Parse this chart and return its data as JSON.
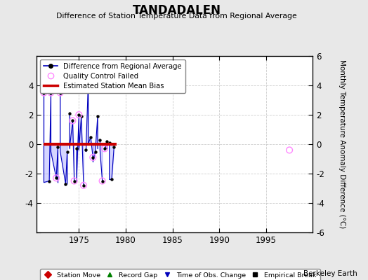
{
  "title": "TANDADALEN",
  "subtitle": "Difference of Station Temperature Data from Regional Average",
  "ylabel": "Monthly Temperature Anomaly Difference (°C)",
  "xlim": [
    1970.5,
    2000
  ],
  "ylim": [
    -6,
    6
  ],
  "xticks": [
    1975,
    1980,
    1985,
    1990,
    1995
  ],
  "yticks": [
    -6,
    -4,
    -2,
    0,
    2,
    4,
    6
  ],
  "background_color": "#e8e8e8",
  "plot_bg_color": "#ffffff",
  "credit": "Berkeley Earth",
  "main_line_color": "#0000bb",
  "main_fill_color": "#8888ff",
  "qc_color": "#ff88ff",
  "bias_color": "#cc0000",
  "bias_x_start": 1971.2,
  "bias_x_end": 1979.0,
  "bias_y": 0.0,
  "lone_point_x": 1997.5,
  "lone_point_y": -0.4,
  "series": [
    {
      "x": [
        1971.25,
        1971.25,
        1971.83,
        1972.0,
        1972.0,
        1972.58,
        1972.75,
        1972.75
      ],
      "y": [
        3.5,
        -2.6,
        -2.5,
        3.5,
        -0.5,
        -2.3,
        -0.2,
        -2.6
      ]
    },
    {
      "x": [
        1973.0,
        1973.0,
        1973.58,
        1973.75,
        1973.75
      ],
      "y": [
        3.5,
        -0.5,
        -2.7,
        -0.5,
        -2.7
      ]
    },
    {
      "x": [
        1974.0,
        1974.0,
        1974.33,
        1974.5,
        1974.5
      ],
      "y": [
        2.1,
        -0.3,
        1.6,
        -2.5,
        -2.5
      ]
    },
    {
      "x": [
        1974.75,
        1974.75,
        1975.0,
        1975.0,
        1975.25,
        1975.5,
        1975.5
      ],
      "y": [
        -0.3,
        -2.5,
        2.0,
        -0.4,
        1.9,
        -2.8,
        -2.8
      ]
    },
    {
      "x": [
        1975.75,
        1975.75,
        1976.0,
        1976.0,
        1976.25,
        1976.5
      ],
      "y": [
        -0.4,
        -0.5,
        4.3,
        0.0,
        0.5,
        -0.9
      ]
    },
    {
      "x": [
        1976.5,
        1976.5,
        1976.75,
        1977.0,
        1977.0
      ],
      "y": [
        -0.9,
        -1.2,
        -0.5,
        1.9,
        -0.3
      ]
    },
    {
      "x": [
        1977.25,
        1977.25,
        1977.5,
        1977.5
      ],
      "y": [
        0.3,
        -0.4,
        -2.5,
        -2.5
      ]
    },
    {
      "x": [
        1977.75,
        1977.75,
        1978.0,
        1978.0
      ],
      "y": [
        -0.3,
        -0.4,
        0.2,
        -0.3
      ]
    },
    {
      "x": [
        1978.25,
        1978.25,
        1978.5,
        1978.75
      ],
      "y": [
        0.1,
        -2.4,
        -2.4,
        -0.2
      ]
    }
  ],
  "all_points_x": [
    1971.25,
    1971.83,
    1972.0,
    1972.58,
    1972.75,
    1973.0,
    1973.58,
    1973.75,
    1974.0,
    1974.33,
    1974.5,
    1974.75,
    1975.0,
    1975.25,
    1975.5,
    1975.75,
    1976.0,
    1976.25,
    1976.5,
    1976.75,
    1977.0,
    1977.25,
    1977.5,
    1977.75,
    1978.0,
    1978.25,
    1978.5,
    1978.75
  ],
  "all_points_y": [
    3.5,
    -2.5,
    3.5,
    -2.3,
    -0.2,
    3.5,
    -2.7,
    -0.5,
    2.1,
    1.6,
    -2.5,
    -0.3,
    2.0,
    1.9,
    -2.8,
    -0.4,
    4.3,
    0.5,
    -0.9,
    -0.5,
    1.9,
    0.3,
    -2.5,
    -0.3,
    0.2,
    0.1,
    -2.4,
    -0.2
  ],
  "qc_x": [
    1971.25,
    1972.0,
    1972.58,
    1973.0,
    1974.33,
    1974.5,
    1975.0,
    1975.5,
    1976.0,
    1976.5,
    1977.5,
    1977.75
  ],
  "qc_y": [
    3.5,
    3.5,
    -2.3,
    3.5,
    1.6,
    -2.5,
    2.0,
    -2.8,
    4.3,
    -0.9,
    -2.5,
    -0.3
  ]
}
